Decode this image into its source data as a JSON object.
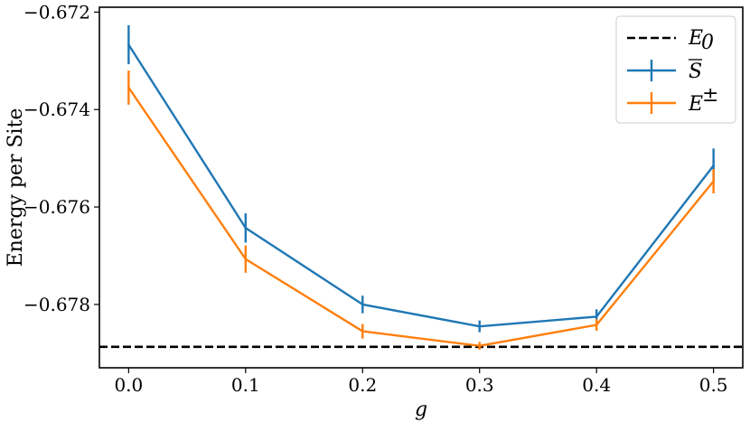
{
  "chart_data": {
    "type": "line",
    "title": "",
    "xlabel": "g",
    "ylabel": "Energy per Site",
    "xlim": [
      -0.025,
      0.525
    ],
    "ylim": [
      -0.6793,
      -0.6719
    ],
    "xticks": [
      0.0,
      0.1,
      0.2,
      0.3,
      0.4,
      0.5
    ],
    "xtick_labels": [
      "0.0",
      "0.1",
      "0.2",
      "0.3",
      "0.4",
      "0.5"
    ],
    "yticks": [
      -0.672,
      -0.674,
      -0.676,
      -0.678
    ],
    "ytick_labels": [
      "−0.672",
      "−0.674",
      "−0.676",
      "−0.678"
    ],
    "grid": false,
    "legend_position": "top-right",
    "reference_line": {
      "label": "E",
      "label_sub": "0",
      "value": -0.67887,
      "color": "#000000",
      "style": "dashed"
    },
    "series": [
      {
        "label": "S",
        "label_decoration": "overline",
        "color": "#1f77b4",
        "x": [
          0.0,
          0.1,
          0.2,
          0.3,
          0.4,
          0.5
        ],
        "y": [
          -0.67267,
          -0.67643,
          -0.678,
          -0.67845,
          -0.67825,
          -0.67515
        ],
        "yerr": [
          0.0004,
          0.0003,
          0.00018,
          0.00012,
          0.00015,
          0.00035
        ]
      },
      {
        "label": "E",
        "label_sup": "±",
        "color": "#ff7f0e",
        "x": [
          0.0,
          0.1,
          0.2,
          0.3,
          0.4,
          0.5
        ],
        "y": [
          -0.67355,
          -0.67707,
          -0.67855,
          -0.67885,
          -0.67842,
          -0.67547
        ],
        "yerr": [
          0.00035,
          0.00028,
          0.00015,
          8e-05,
          0.00012,
          0.00025
        ]
      }
    ]
  }
}
